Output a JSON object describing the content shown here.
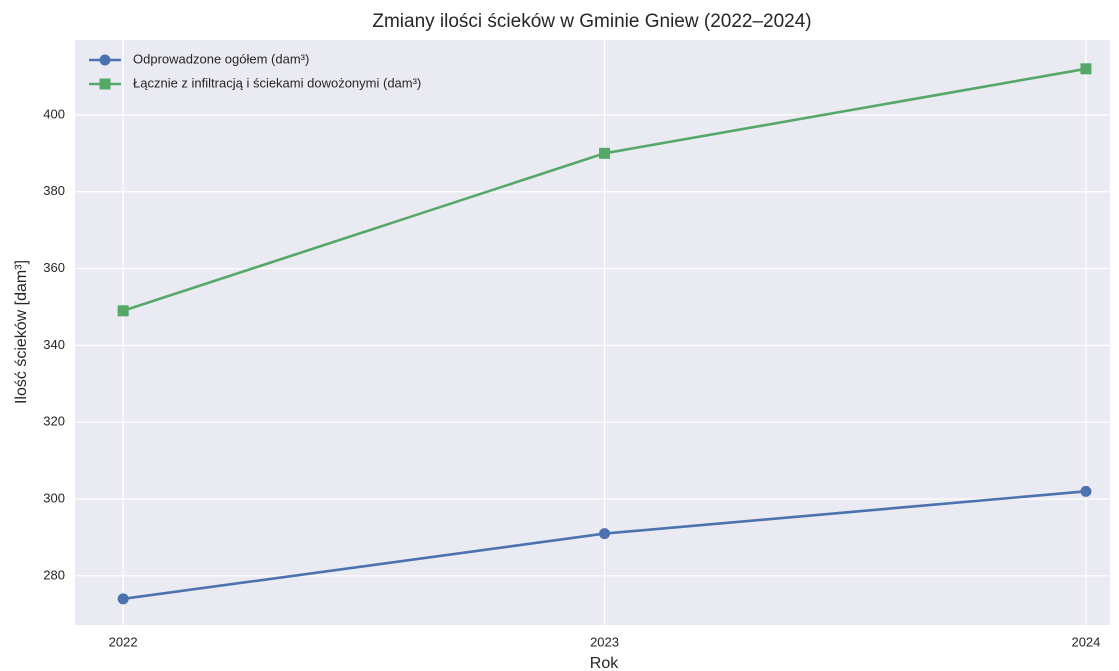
{
  "chart_data": {
    "type": "line",
    "title": "Zmiany ilości ścieków w Gminie Gniew (2022–2024)",
    "x_label": "Rok",
    "y_label": "Ilość ścieków [dam³]",
    "x": [
      2022,
      2023,
      2024
    ],
    "series": [
      {
        "name": "Odprowadzone ogółem (dam³)",
        "color": "#4c72b0",
        "marker": "circle",
        "values": [
          274,
          291,
          302
        ]
      },
      {
        "name": "Łącznie z infiltracją i ściekami dowożonymi (dam³)",
        "color": "#55a868",
        "marker": "square",
        "values": [
          349,
          390,
          412
        ]
      }
    ],
    "xlim": [
      2021.9,
      2024.05
    ],
    "ylim": [
      267.2,
      419.5
    ],
    "xticks": [
      2022,
      2023,
      2024
    ],
    "yticks": [
      280,
      300,
      320,
      340,
      360,
      380,
      400
    ],
    "grid": true,
    "legend": "upper left"
  }
}
